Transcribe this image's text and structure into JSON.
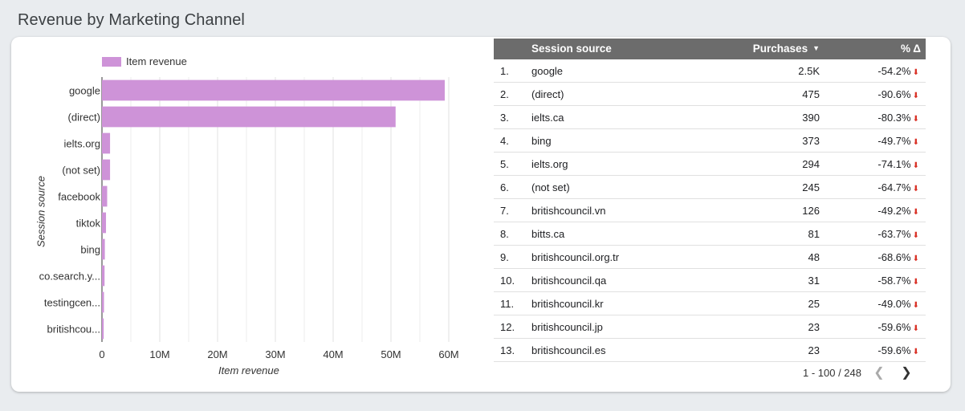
{
  "page": {
    "title": "Revenue by Marketing Channel"
  },
  "chart_data": {
    "type": "bar",
    "orientation": "horizontal",
    "categories": [
      "google",
      "(direct)",
      "ielts.org",
      "(not set)",
      "facebook",
      "tiktok",
      "bing",
      "co.search.y...",
      "testingcen...",
      "britishcou..."
    ],
    "series": [
      {
        "name": "Item revenue",
        "values": [
          59300000,
          50800000,
          1400000,
          1400000,
          900000,
          700000,
          500000,
          450000,
          350000,
          300000
        ]
      }
    ],
    "xlabel": "Item revenue",
    "ylabel": "Session source",
    "xlim": [
      0,
      60000000
    ],
    "x_ticks": [
      "0",
      "10M",
      "20M",
      "30M",
      "40M",
      "50M",
      "60M"
    ],
    "grid": true,
    "legend": "top-left",
    "color": "#ce93d8"
  },
  "table": {
    "headers": {
      "source": "Session source",
      "purchases": "Purchases",
      "delta": "% Δ"
    },
    "rows": [
      {
        "num": "1.",
        "source": "google",
        "purchases": "2.5K",
        "delta": "-54.2%"
      },
      {
        "num": "2.",
        "source": "(direct)",
        "purchases": "475",
        "delta": "-90.6%"
      },
      {
        "num": "3.",
        "source": "ielts.ca",
        "purchases": "390",
        "delta": "-80.3%"
      },
      {
        "num": "4.",
        "source": "bing",
        "purchases": "373",
        "delta": "-49.7%"
      },
      {
        "num": "5.",
        "source": "ielts.org",
        "purchases": "294",
        "delta": "-74.1%"
      },
      {
        "num": "6.",
        "source": "(not set)",
        "purchases": "245",
        "delta": "-64.7%"
      },
      {
        "num": "7.",
        "source": "britishcouncil.vn",
        "purchases": "126",
        "delta": "-49.2%"
      },
      {
        "num": "8.",
        "source": "bitts.ca",
        "purchases": "81",
        "delta": "-63.7%"
      },
      {
        "num": "9.",
        "source": "britishcouncil.org.tr",
        "purchases": "48",
        "delta": "-68.6%"
      },
      {
        "num": "10.",
        "source": "britishcouncil.qa",
        "purchases": "31",
        "delta": "-58.7%"
      },
      {
        "num": "11.",
        "source": "britishcouncil.kr",
        "purchases": "25",
        "delta": "-49.0%"
      },
      {
        "num": "12.",
        "source": "britishcouncil.jp",
        "purchases": "23",
        "delta": "-59.6%"
      },
      {
        "num": "13.",
        "source": "britishcouncil.es",
        "purchases": "23",
        "delta": "-59.6%"
      }
    ],
    "pagination": "1 - 100 / 248",
    "delta_color": "#d93025"
  }
}
